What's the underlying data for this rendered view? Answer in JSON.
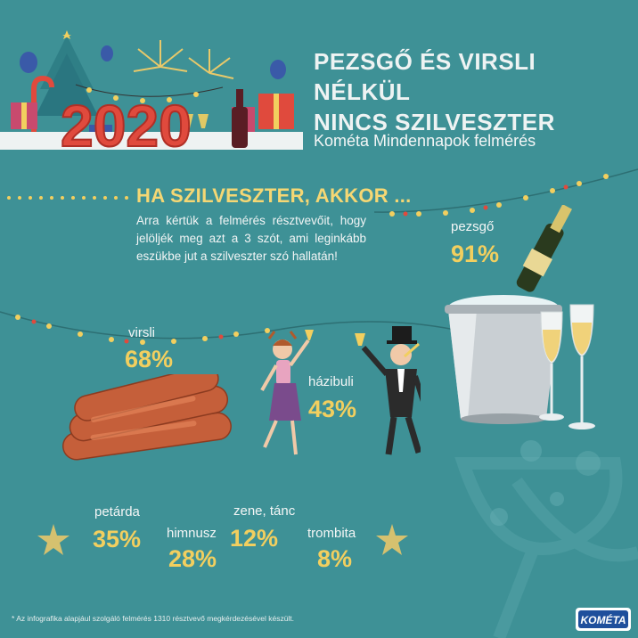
{
  "header": {
    "title_line1": "PEZSGŐ ÉS VIRSLI NÉLKÜL",
    "title_line2": "NINCS SZILVESZTER",
    "subtitle": "Kométa Mindennapok felmérés",
    "banner_year": "2020"
  },
  "section": {
    "heading": "HA SZILVESZTER, AKKOR ...",
    "intro": "Arra kértük a felmérés résztvevőit, hogy jelöljék meg azt a 3 szót, ami leginkább eszükbe jut a szilveszter szó hallatán!"
  },
  "results": [
    {
      "label": "pezsgő",
      "value": "91%"
    },
    {
      "label": "virsli",
      "value": "68%"
    },
    {
      "label": "házibuli",
      "value": "43%"
    },
    {
      "label": "petárda",
      "value": "35%"
    },
    {
      "label": "himnusz",
      "value": "28%"
    },
    {
      "label": "zene, tánc",
      "value": "12%"
    },
    {
      "label": "trombita",
      "value": "8%"
    }
  ],
  "footnote": "* Az infografika alapjául szolgáló felmérés 1310 résztvevő megkérdezésével készült.",
  "brand": {
    "logo_text": "KOMÉTA"
  },
  "colors": {
    "background": "#3e9196",
    "accent": "#f2cf5f",
    "text": "#f4f6f6",
    "logo": "#1f4f9c"
  }
}
